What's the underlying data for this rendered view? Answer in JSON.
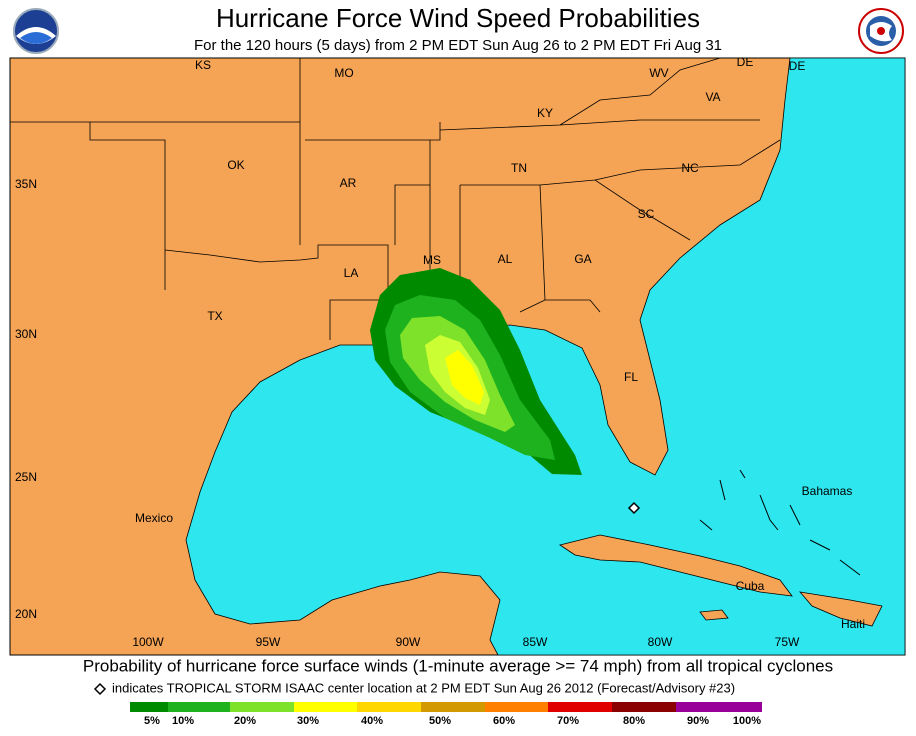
{
  "header": {
    "title": "Hurricane Force Wind Speed Probabilities",
    "subtitle": "For the 120 hours (5 days) from 2 PM EDT Sun Aug 26 to 2 PM EDT Fri Aug 31"
  },
  "map": {
    "labels": [
      "KS",
      "MO",
      "WV",
      "DE",
      "DE",
      "VA",
      "KY",
      "OK",
      "AR",
      "TN",
      "NC",
      "SC",
      "MS",
      "AL",
      "GA",
      "LA",
      "TX",
      "FL",
      "Mexico",
      "Bahamas",
      "Cuba",
      "Haiti"
    ],
    "latitude_labels": [
      "35N",
      "30N",
      "25N",
      "20N"
    ],
    "longitude_labels": [
      "100W",
      "95W",
      "90W",
      "85W",
      "80W",
      "75W"
    ]
  },
  "footer": {
    "caption": "Probability of hurricane force surface winds (1-minute average >= 74 mph) from all tropical cyclones",
    "storm_note": "indicates TROPICAL STORM ISAAC center location at 2 PM EDT Sun Aug 26 2012 (Forecast/Advisory #23)"
  },
  "legend": {
    "labels": [
      "5%",
      "10%",
      "20%",
      "30%",
      "40%",
      "50%",
      "60%",
      "70%",
      "80%",
      "90%",
      "100%"
    ]
  }
}
